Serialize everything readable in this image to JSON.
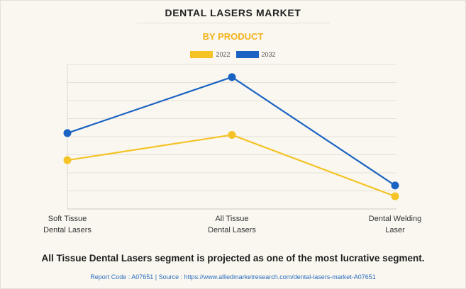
{
  "header": {
    "title": "DENTAL LASERS MARKET",
    "subtitle": "BY PRODUCT"
  },
  "colors": {
    "series_2022": "#f5c326",
    "series_2032": "#1a63c3",
    "subtitle": "#f2b21b",
    "source": "#2a6ebd"
  },
  "chart_data": {
    "type": "line",
    "categories": [
      "Soft Tissue\nDental Lasers",
      "All Tissue\nDental Lasers",
      "Dental Welding\nLaser"
    ],
    "category_lines": [
      [
        "Soft Tissue",
        "Dental Lasers"
      ],
      [
        "All Tissue",
        "Dental Lasers"
      ],
      [
        "Dental Welding",
        "Laser"
      ]
    ],
    "series": [
      {
        "name": "2022",
        "values": [
          27,
          41,
          7
        ],
        "color": "#f5c326"
      },
      {
        "name": "2032",
        "values": [
          42,
          73,
          13
        ],
        "color": "#1a63c3"
      }
    ],
    "ylim": [
      0,
      80
    ],
    "y_ticks": [
      0,
      10,
      20,
      30,
      40,
      50,
      60,
      70,
      80
    ],
    "grid": true,
    "legend_position": "top-center",
    "y_tick_labels_shown": false
  },
  "footer": {
    "note": "All Tissue Dental Lasers segment is projected as one of the most lucrative segment.",
    "source": "Report Code : A07651  |  Source : https://www.alliedmarketresearch.com/dental-lasers-market-A07651"
  }
}
